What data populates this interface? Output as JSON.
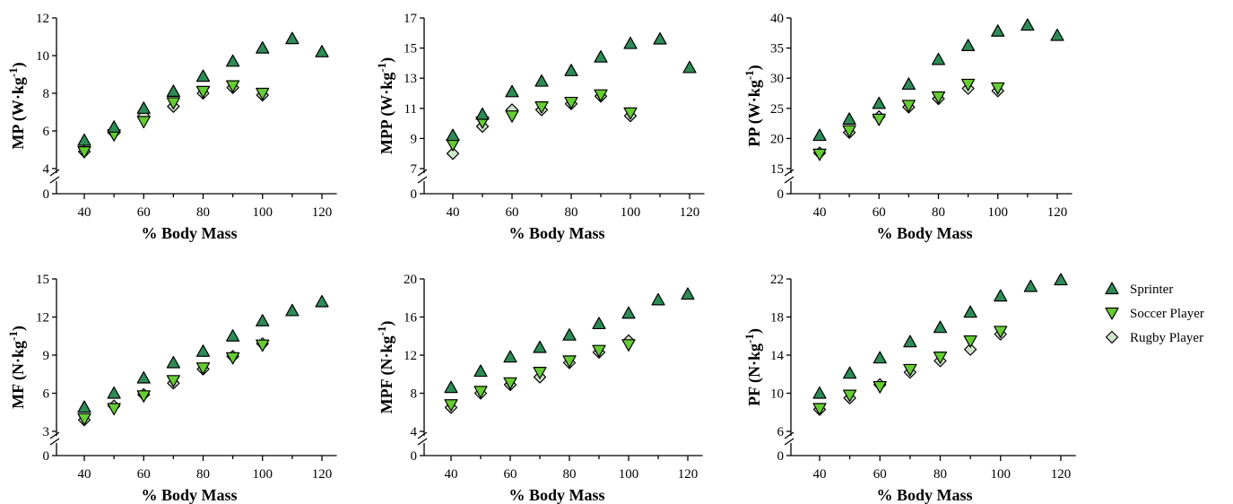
{
  "colors": {
    "sprinter": "#2e8b57",
    "soccer": "#66cc33",
    "rugby": "#d0e4cc",
    "edge": "#000000"
  },
  "legend": {
    "items": [
      {
        "key": "sprinter",
        "label": "Sprinter",
        "marker": "triangle-up"
      },
      {
        "key": "soccer",
        "label": "Soccer Player",
        "marker": "triangle-down"
      },
      {
        "key": "rugby",
        "label": "Rugby Player",
        "marker": "diamond"
      }
    ]
  },
  "chart_data": [
    {
      "type": "scatter",
      "ylabel": "MP (W·kg⁻¹)",
      "ylabel_main": "MP (W·kg",
      "ylabel_sup": "-1",
      "ylabel_end": ")",
      "xlabel": "% Body Mass",
      "xlim": [
        30,
        125
      ],
      "xticks": [
        40,
        60,
        80,
        100,
        120
      ],
      "ylim": [
        4,
        12
      ],
      "yticks": [
        4,
        6,
        8,
        10,
        12
      ],
      "y_zero_label": "0",
      "axis_break": true,
      "series": [
        {
          "name": "Sprinter",
          "x": [
            40,
            50,
            60,
            70,
            80,
            90,
            100,
            110,
            120
          ],
          "y": [
            5.5,
            6.2,
            7.2,
            8.1,
            8.9,
            9.7,
            10.4,
            10.9,
            10.2
          ]
        },
        {
          "name": "Soccer Player",
          "x": [
            40,
            50,
            60,
            70,
            80,
            90,
            100
          ],
          "y": [
            4.9,
            5.8,
            6.5,
            7.5,
            8.1,
            8.4,
            8.0
          ]
        },
        {
          "name": "Rugby Player",
          "x": [
            40,
            50,
            60,
            70,
            80,
            90,
            100
          ],
          "y": [
            4.9,
            5.9,
            6.8,
            7.3,
            8.0,
            8.3,
            7.9
          ]
        }
      ]
    },
    {
      "type": "scatter",
      "ylabel": "MPP (W·kg⁻¹)",
      "ylabel_main": "MPP (W·kg",
      "ylabel_sup": "-1",
      "ylabel_end": ")",
      "xlabel": "% Body Mass",
      "xlim": [
        30,
        125
      ],
      "xticks": [
        40,
        60,
        80,
        100,
        120
      ],
      "ylim": [
        7,
        17
      ],
      "yticks": [
        7,
        9,
        11,
        13,
        15,
        17
      ],
      "y_zero_label": "0",
      "axis_break": true,
      "series": [
        {
          "name": "Sprinter",
          "x": [
            40,
            50,
            60,
            70,
            80,
            90,
            100,
            110,
            120
          ],
          "y": [
            9.2,
            10.6,
            12.1,
            12.8,
            13.5,
            14.4,
            15.3,
            15.6,
            13.7
          ]
        },
        {
          "name": "Soccer Player",
          "x": [
            40,
            50,
            60,
            70,
            80,
            90,
            100
          ],
          "y": [
            8.6,
            10.1,
            10.5,
            11.1,
            11.4,
            11.9,
            10.7
          ]
        },
        {
          "name": "Rugby Player",
          "x": [
            40,
            50,
            60,
            70,
            80,
            90,
            100
          ],
          "y": [
            8.0,
            9.8,
            10.9,
            10.9,
            11.3,
            11.8,
            10.5
          ]
        }
      ]
    },
    {
      "type": "scatter",
      "ylabel": "PP (W·kg⁻¹)",
      "ylabel_main": "PP (W·kg",
      "ylabel_sup": "-1",
      "ylabel_end": ")",
      "xlabel": "% Body Mass",
      "xlim": [
        30,
        125
      ],
      "xticks": [
        40,
        60,
        80,
        100,
        120
      ],
      "ylim": [
        15,
        40
      ],
      "yticks": [
        15,
        20,
        25,
        30,
        35,
        40
      ],
      "y_zero_label": "0",
      "axis_break": true,
      "series": [
        {
          "name": "Sprinter",
          "x": [
            40,
            50,
            60,
            70,
            80,
            90,
            100,
            110,
            120
          ],
          "y": [
            20.5,
            23.2,
            25.8,
            29.0,
            33.1,
            35.4,
            37.8,
            38.8,
            37.1
          ]
        },
        {
          "name": "Soccer Player",
          "x": [
            40,
            50,
            60,
            70,
            80,
            90,
            100
          ],
          "y": [
            17.4,
            21.3,
            23.2,
            25.5,
            26.9,
            29.0,
            28.4
          ]
        },
        {
          "name": "Rugby Player",
          "x": [
            40,
            50,
            60,
            70,
            80,
            90,
            100
          ],
          "y": [
            17.6,
            21.0,
            23.6,
            25.2,
            26.6,
            28.3,
            27.9
          ]
        }
      ]
    },
    {
      "type": "scatter",
      "ylabel": "MF (N·kg⁻¹)",
      "ylabel_main": "MF (N·kg",
      "ylabel_sup": "-1",
      "ylabel_end": ")",
      "xlabel": "% Body Mass",
      "xlim": [
        30,
        125
      ],
      "xticks": [
        40,
        60,
        80,
        100,
        120
      ],
      "ylim": [
        3,
        15
      ],
      "yticks": [
        3,
        6,
        9,
        12,
        15
      ],
      "y_zero_label": "0",
      "axis_break": true,
      "series": [
        {
          "name": "Sprinter",
          "x": [
            40,
            50,
            60,
            70,
            80,
            90,
            100,
            110,
            120
          ],
          "y": [
            4.9,
            6.0,
            7.2,
            8.4,
            9.3,
            10.5,
            11.7,
            12.5,
            13.2
          ]
        },
        {
          "name": "Soccer Player",
          "x": [
            40,
            50,
            60,
            70,
            80,
            90,
            100
          ],
          "y": [
            4.0,
            4.8,
            5.8,
            7.0,
            8.0,
            8.8,
            9.8
          ]
        },
        {
          "name": "Rugby Player",
          "x": [
            40,
            50,
            60,
            70,
            80,
            90,
            100
          ],
          "y": [
            3.9,
            5.0,
            5.9,
            6.8,
            7.9,
            8.9,
            9.9
          ]
        }
      ]
    },
    {
      "type": "scatter",
      "ylabel": "MPF (N·kg⁻¹)",
      "ylabel_main": "MPF (N·kg",
      "ylabel_sup": "-1",
      "ylabel_end": ")",
      "xlabel": "% Body Mass",
      "xlim": [
        30,
        125
      ],
      "xticks": [
        40,
        60,
        80,
        100,
        120
      ],
      "ylim": [
        4,
        20
      ],
      "yticks": [
        4,
        8,
        12,
        16,
        20
      ],
      "y_zero_label": "0",
      "axis_break": true,
      "series": [
        {
          "name": "Sprinter",
          "x": [
            40,
            50,
            60,
            70,
            80,
            90,
            100,
            110,
            120
          ],
          "y": [
            8.6,
            10.3,
            11.8,
            12.8,
            14.1,
            15.3,
            16.4,
            17.8,
            18.4
          ]
        },
        {
          "name": "Soccer Player",
          "x": [
            40,
            50,
            60,
            70,
            80,
            90,
            100
          ],
          "y": [
            6.8,
            8.2,
            9.1,
            10.2,
            11.4,
            12.5,
            13.1
          ]
        },
        {
          "name": "Rugby Player",
          "x": [
            40,
            50,
            60,
            70,
            80,
            90,
            100
          ],
          "y": [
            6.5,
            8.0,
            8.9,
            9.7,
            11.2,
            12.3,
            13.5
          ]
        }
      ]
    },
    {
      "type": "scatter",
      "ylabel": "PF (N·kg⁻¹)",
      "ylabel_main": "PF (N·kg",
      "ylabel_sup": "-1",
      "ylabel_end": ")",
      "xlabel": "% Body Mass",
      "xlim": [
        30,
        125
      ],
      "xticks": [
        40,
        60,
        80,
        100,
        120
      ],
      "ylim": [
        6,
        22
      ],
      "yticks": [
        6,
        10,
        14,
        18,
        22
      ],
      "y_zero_label": "0",
      "axis_break": true,
      "series": [
        {
          "name": "Sprinter",
          "x": [
            40,
            50,
            60,
            70,
            80,
            90,
            100,
            110,
            120
          ],
          "y": [
            10.0,
            12.1,
            13.7,
            15.4,
            16.9,
            18.5,
            20.2,
            21.2,
            21.9
          ]
        },
        {
          "name": "Soccer Player",
          "x": [
            40,
            50,
            60,
            70,
            80,
            90,
            100
          ],
          "y": [
            8.4,
            9.8,
            10.7,
            12.5,
            13.8,
            15.5,
            16.5
          ]
        },
        {
          "name": "Rugby Player",
          "x": [
            40,
            50,
            60,
            70,
            80,
            90,
            100
          ],
          "y": [
            8.3,
            9.5,
            10.9,
            12.2,
            13.4,
            14.6,
            16.2
          ]
        }
      ]
    }
  ]
}
